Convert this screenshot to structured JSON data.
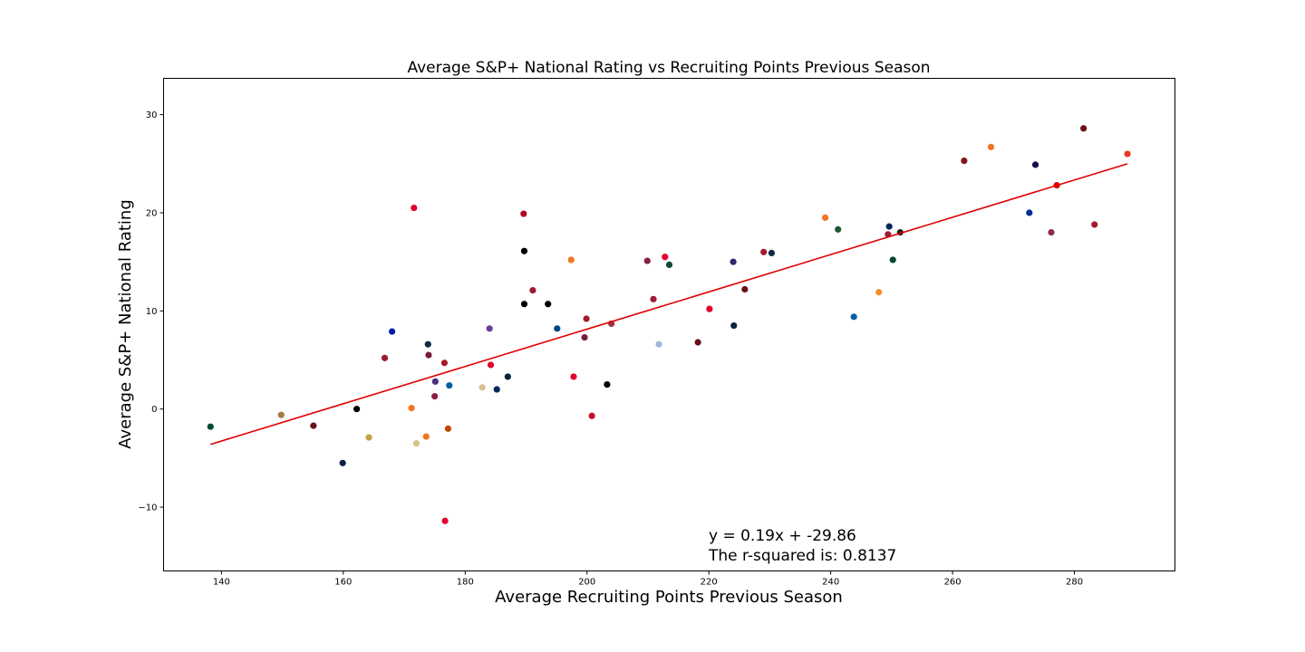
{
  "chart_data": {
    "type": "scatter",
    "title": "Average S&P+ National Rating vs Recruiting Points Previous Season",
    "xlabel": "Average Recruiting Points Previous Season",
    "ylabel": "Average S&P+ National Rating",
    "xlim": [
      130.5,
      296.5
    ],
    "ylim": [
      -16.5,
      33.7
    ],
    "xticks": [
      140,
      160,
      180,
      200,
      220,
      240,
      260,
      280
    ],
    "yticks": [
      -10,
      0,
      10,
      20,
      30
    ],
    "grid": false,
    "regression": {
      "slope": 0.19,
      "intercept": -29.86,
      "x_range": [
        138.2,
        288.7
      ],
      "color": "#e00000",
      "equation_text": "y = 0.19x + -29.86",
      "r_squared_text": "The r-squared is: 0.8137"
    },
    "points": [
      {
        "x": 138.2,
        "y": -1.8,
        "color": "#004b2e"
      },
      {
        "x": 149.8,
        "y": -0.6,
        "color": "#a67c3a"
      },
      {
        "x": 155.1,
        "y": -1.7,
        "color": "#6b0f1a"
      },
      {
        "x": 159.9,
        "y": -5.5,
        "color": "#0b1f4d"
      },
      {
        "x": 162.2,
        "y": 0.0,
        "color": "#000000"
      },
      {
        "x": 164.2,
        "y": -2.9,
        "color": "#c5a03b"
      },
      {
        "x": 166.8,
        "y": 5.2,
        "color": "#9e1b32"
      },
      {
        "x": 168.0,
        "y": 7.9,
        "color": "#0021a5"
      },
      {
        "x": 171.2,
        "y": 0.1,
        "color": "#f47321"
      },
      {
        "x": 171.6,
        "y": 20.5,
        "color": "#e4002b"
      },
      {
        "x": 172.0,
        "y": -3.5,
        "color": "#d9c08c"
      },
      {
        "x": 173.6,
        "y": -2.8,
        "color": "#f47321"
      },
      {
        "x": 173.9,
        "y": 6.6,
        "color": "#13294b"
      },
      {
        "x": 174.0,
        "y": 5.5,
        "color": "#7b1e3a"
      },
      {
        "x": 175.0,
        "y": 1.3,
        "color": "#8c1d40"
      },
      {
        "x": 175.1,
        "y": 2.8,
        "color": "#4b2e83"
      },
      {
        "x": 176.6,
        "y": 4.7,
        "color": "#a6192e"
      },
      {
        "x": 176.7,
        "y": -11.4,
        "color": "#e4002b"
      },
      {
        "x": 177.2,
        "y": -2.0,
        "color": "#c64600"
      },
      {
        "x": 177.4,
        "y": 2.4,
        "color": "#0062a5"
      },
      {
        "x": 182.8,
        "y": 2.2,
        "color": "#d9c08c"
      },
      {
        "x": 184.0,
        "y": 8.2,
        "color": "#6a3d9a"
      },
      {
        "x": 184.2,
        "y": 4.5,
        "color": "#e4002b"
      },
      {
        "x": 185.2,
        "y": 2.0,
        "color": "#002a5c"
      },
      {
        "x": 187.0,
        "y": 3.3,
        "color": "#0c2340"
      },
      {
        "x": 189.6,
        "y": 19.9,
        "color": "#b00020"
      },
      {
        "x": 189.7,
        "y": 16.1,
        "color": "#000000"
      },
      {
        "x": 189.7,
        "y": 10.7,
        "color": "#000000"
      },
      {
        "x": 191.1,
        "y": 12.1,
        "color": "#9e1b32"
      },
      {
        "x": 193.6,
        "y": 10.7,
        "color": "#000000"
      },
      {
        "x": 195.1,
        "y": 8.2,
        "color": "#00467f"
      },
      {
        "x": 197.4,
        "y": 15.2,
        "color": "#f47321"
      },
      {
        "x": 197.8,
        "y": 3.3,
        "color": "#e4002b"
      },
      {
        "x": 199.6,
        "y": 7.3,
        "color": "#7b1e3a"
      },
      {
        "x": 199.9,
        "y": 9.2,
        "color": "#a6192e"
      },
      {
        "x": 200.8,
        "y": -0.7,
        "color": "#c8102e"
      },
      {
        "x": 203.3,
        "y": 2.5,
        "color": "#000000"
      },
      {
        "x": 204.0,
        "y": 8.7,
        "color": "#a03048"
      },
      {
        "x": 209.9,
        "y": 15.1,
        "color": "#861f41"
      },
      {
        "x": 210.9,
        "y": 11.2,
        "color": "#9e1b32"
      },
      {
        "x": 211.8,
        "y": 6.6,
        "color": "#99badd"
      },
      {
        "x": 212.8,
        "y": 15.5,
        "color": "#e4002b"
      },
      {
        "x": 213.5,
        "y": 14.7,
        "color": "#154734"
      },
      {
        "x": 218.2,
        "y": 6.8,
        "color": "#6b0f1a"
      },
      {
        "x": 220.1,
        "y": 10.2,
        "color": "#e4002b"
      },
      {
        "x": 224.0,
        "y": 15.0,
        "color": "#2e2a6e"
      },
      {
        "x": 224.1,
        "y": 8.5,
        "color": "#0c2340"
      },
      {
        "x": 225.9,
        "y": 12.2,
        "color": "#6b0f1a"
      },
      {
        "x": 229.0,
        "y": 16.0,
        "color": "#a6192e"
      },
      {
        "x": 230.3,
        "y": 15.9,
        "color": "#13294b"
      },
      {
        "x": 239.1,
        "y": 19.5,
        "color": "#f47321"
      },
      {
        "x": 241.2,
        "y": 18.3,
        "color": "#1e5631"
      },
      {
        "x": 243.8,
        "y": 9.4,
        "color": "#0062a5"
      },
      {
        "x": 247.9,
        "y": 11.9,
        "color": "#f68d2e"
      },
      {
        "x": 249.4,
        "y": 17.8,
        "color": "#9e1b32"
      },
      {
        "x": 249.6,
        "y": 18.6,
        "color": "#002a5c"
      },
      {
        "x": 250.2,
        "y": 15.2,
        "color": "#004b2e"
      },
      {
        "x": 251.4,
        "y": 18.0,
        "color": "#231f20"
      },
      {
        "x": 261.9,
        "y": 25.3,
        "color": "#841617"
      },
      {
        "x": 266.3,
        "y": 26.7,
        "color": "#f47321"
      },
      {
        "x": 272.6,
        "y": 20.0,
        "color": "#002d9c"
      },
      {
        "x": 273.6,
        "y": 24.9,
        "color": "#1a0a4d"
      },
      {
        "x": 276.2,
        "y": 18.0,
        "color": "#8a2d4e"
      },
      {
        "x": 277.1,
        "y": 22.8,
        "color": "#e00000"
      },
      {
        "x": 281.5,
        "y": 28.6,
        "color": "#6b0f1a"
      },
      {
        "x": 283.3,
        "y": 18.8,
        "color": "#a6192e"
      },
      {
        "x": 288.7,
        "y": 26.0,
        "color": "#e8372c"
      }
    ]
  }
}
